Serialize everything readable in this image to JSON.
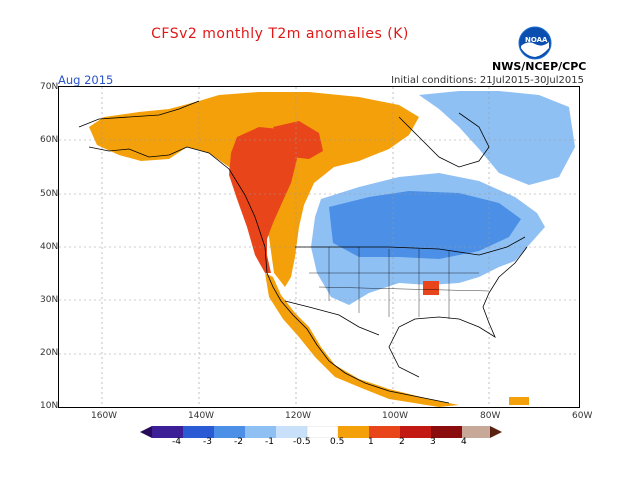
{
  "header": {
    "title": "CFSv2 monthly T2m anomalies (K)",
    "period": "Aug 2015",
    "initial_conditions": "Initial conditions: 21Jul2015-30Jul2015",
    "organization": "NWS/NCEP/CPC",
    "logo_text": "NOAA"
  },
  "map": {
    "lat_labels": [
      "70N",
      "60N",
      "50N",
      "40N",
      "30N",
      "20N",
      "10N"
    ],
    "lon_labels": [
      "160W",
      "140W",
      "120W",
      "100W",
      "80W",
      "60W"
    ]
  },
  "colorbar": {
    "labels": [
      "-4",
      "-3",
      "-2",
      "-1",
      "-0.5",
      "0.5",
      "1",
      "2",
      "3",
      "4"
    ],
    "colors": [
      "#3c1f96",
      "#2a5ad4",
      "#4b8fe6",
      "#8fc0f4",
      "#ffffff",
      "#f4a00a",
      "#e8461a",
      "#c21a12",
      "#8a0c0c",
      "#c8a898"
    ]
  }
}
